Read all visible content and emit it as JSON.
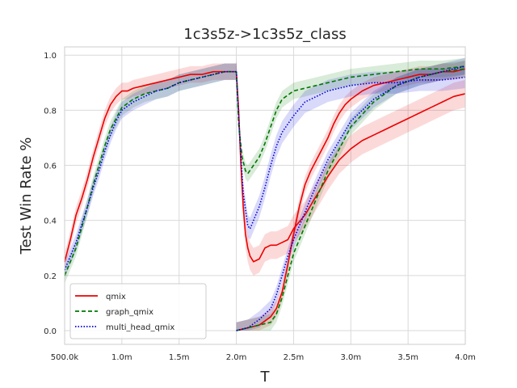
{
  "chart_data": {
    "type": "line",
    "title": "1c3s5z->1c3s5z_class",
    "xlabel": "T",
    "ylabel": "Test Win Rate %",
    "xlim": [
      500000,
      4000000
    ],
    "ylim": [
      -0.05,
      1.03
    ],
    "x_ticks": [
      500000,
      1000000,
      1500000,
      2000000,
      2500000,
      3000000,
      3500000,
      4000000
    ],
    "x_tick_labels": [
      "500.0k",
      "1.0m",
      "1.5m",
      "2.0m",
      "2.5m",
      "3.0m",
      "3.5m",
      "4.0m"
    ],
    "y_ticks": [
      0.0,
      0.2,
      0.4,
      0.6,
      0.8,
      1.0
    ],
    "y_tick_labels": [
      "0.0",
      "0.2",
      "0.4",
      "0.6",
      "0.8",
      "1.0"
    ],
    "grid": true,
    "legend_position": "lower-left",
    "colors": {
      "qmix": "#ee0000",
      "graph_qmix": "#007700",
      "multi_head_qmix": "#0000dd"
    },
    "series": [
      {
        "name": "qmix",
        "style": "solid",
        "segments": [
          {
            "x": [
              500000,
              550000,
              600000,
              650000,
              700000,
              750000,
              800000,
              850000,
              900000,
              950000,
              1000000,
              1050000,
              1100000,
              1200000,
              1300000,
              1400000,
              1500000,
              1600000,
              1700000,
              1800000,
              1900000,
              2000000
            ],
            "y": [
              0.25,
              0.33,
              0.42,
              0.48,
              0.55,
              0.63,
              0.7,
              0.77,
              0.82,
              0.85,
              0.87,
              0.87,
              0.88,
              0.89,
              0.9,
              0.91,
              0.92,
              0.93,
              0.93,
              0.94,
              0.94,
              0.94
            ],
            "band": 0.03
          },
          {
            "x": [
              2000000,
              2020000,
              2040000,
              2060000,
              2080000,
              2100000,
              2120000,
              2150000,
              2200000,
              2250000,
              2300000,
              2350000,
              2400000,
              2450000,
              2500000,
              2600000,
              2700000,
              2800000,
              2900000,
              3000000,
              3100000,
              3200000,
              3300000,
              3400000,
              3500000,
              3600000,
              3700000,
              3800000,
              3900000,
              4000000
            ],
            "y": [
              0.94,
              0.8,
              0.6,
              0.45,
              0.35,
              0.3,
              0.27,
              0.25,
              0.26,
              0.3,
              0.31,
              0.31,
              0.32,
              0.33,
              0.37,
              0.42,
              0.49,
              0.56,
              0.62,
              0.66,
              0.69,
              0.71,
              0.73,
              0.75,
              0.77,
              0.79,
              0.81,
              0.83,
              0.85,
              0.86
            ],
            "band": 0.05
          },
          {
            "x": [
              2000000,
              2100000,
              2200000,
              2300000,
              2350000,
              2400000,
              2450000,
              2500000,
              2550000,
              2600000,
              2650000,
              2700000,
              2750000,
              2800000,
              2850000,
              2900000,
              2950000,
              3000000,
              3100000,
              3200000,
              3300000,
              3400000,
              3500000,
              3600000,
              3700000,
              3800000,
              3900000,
              4000000
            ],
            "y": [
              0.0,
              0.01,
              0.02,
              0.05,
              0.08,
              0.14,
              0.24,
              0.35,
              0.45,
              0.53,
              0.58,
              0.62,
              0.66,
              0.7,
              0.75,
              0.79,
              0.82,
              0.84,
              0.87,
              0.89,
              0.9,
              0.91,
              0.92,
              0.93,
              0.93,
              0.94,
              0.94,
              0.95
            ],
            "band": 0.03
          }
        ]
      },
      {
        "name": "graph_qmix",
        "style": "dashed",
        "segments": [
          {
            "x": [
              500000,
              600000,
              700000,
              750000,
              800000,
              850000,
              900000,
              950000,
              1000000,
              1100000,
              1200000,
              1300000,
              1400000,
              1500000,
              1600000,
              1700000,
              1800000,
              1900000,
              2000000
            ],
            "y": [
              0.2,
              0.3,
              0.45,
              0.53,
              0.6,
              0.67,
              0.73,
              0.77,
              0.81,
              0.84,
              0.86,
              0.87,
              0.88,
              0.9,
              0.91,
              0.92,
              0.93,
              0.94,
              0.94
            ],
            "band": 0.03
          },
          {
            "x": [
              2000000,
              2020000,
              2050000,
              2080000,
              2100000,
              2150000,
              2200000,
              2250000,
              2300000,
              2350000,
              2400000,
              2500000,
              2600000,
              2700000,
              2800000,
              2900000,
              3000000,
              3200000,
              3400000,
              3600000,
              3800000,
              4000000
            ],
            "y": [
              0.94,
              0.75,
              0.63,
              0.58,
              0.57,
              0.6,
              0.63,
              0.68,
              0.74,
              0.8,
              0.84,
              0.87,
              0.88,
              0.89,
              0.9,
              0.91,
              0.92,
              0.93,
              0.94,
              0.95,
              0.95,
              0.96
            ],
            "band": 0.03
          },
          {
            "x": [
              2000000,
              2100000,
              2200000,
              2300000,
              2350000,
              2400000,
              2450000,
              2500000,
              2600000,
              2700000,
              2800000,
              2900000,
              3000000,
              3200000,
              3400000,
              3600000,
              3800000,
              4000000
            ],
            "y": [
              0.0,
              0.01,
              0.02,
              0.03,
              0.06,
              0.12,
              0.2,
              0.28,
              0.38,
              0.48,
              0.58,
              0.66,
              0.74,
              0.83,
              0.89,
              0.92,
              0.94,
              0.95
            ],
            "band": 0.03
          }
        ]
      },
      {
        "name": "multi_head_qmix",
        "style": "dotted",
        "segments": [
          {
            "x": [
              500000,
              600000,
              700000,
              750000,
              800000,
              850000,
              900000,
              950000,
              1000000,
              1100000,
              1200000,
              1300000,
              1400000,
              1500000,
              1600000,
              1700000,
              1800000,
              1900000,
              2000000
            ],
            "y": [
              0.22,
              0.32,
              0.45,
              0.52,
              0.58,
              0.65,
              0.71,
              0.76,
              0.8,
              0.83,
              0.85,
              0.87,
              0.88,
              0.9,
              0.91,
              0.92,
              0.93,
              0.94,
              0.94
            ],
            "band": 0.03
          },
          {
            "x": [
              2000000,
              2030000,
              2060000,
              2100000,
              2120000,
              2150000,
              2200000,
              2250000,
              2300000,
              2350000,
              2400000,
              2500000,
              2600000,
              2700000,
              2800000,
              2900000,
              3000000,
              3200000,
              3400000,
              3600000,
              3800000,
              4000000
            ],
            "y": [
              0.94,
              0.7,
              0.5,
              0.38,
              0.37,
              0.4,
              0.45,
              0.52,
              0.6,
              0.67,
              0.72,
              0.78,
              0.83,
              0.85,
              0.87,
              0.88,
              0.89,
              0.9,
              0.9,
              0.91,
              0.91,
              0.92
            ],
            "band": 0.04
          },
          {
            "x": [
              2000000,
              2100000,
              2200000,
              2250000,
              2300000,
              2350000,
              2400000,
              2450000,
              2500000,
              2600000,
              2700000,
              2800000,
              2900000,
              3000000,
              3200000,
              3400000,
              3600000,
              3800000,
              4000000
            ],
            "y": [
              0.0,
              0.01,
              0.04,
              0.06,
              0.08,
              0.13,
              0.2,
              0.27,
              0.33,
              0.43,
              0.53,
              0.62,
              0.69,
              0.76,
              0.84,
              0.89,
              0.92,
              0.94,
              0.96
            ],
            "band": 0.03
          }
        ]
      }
    ]
  }
}
